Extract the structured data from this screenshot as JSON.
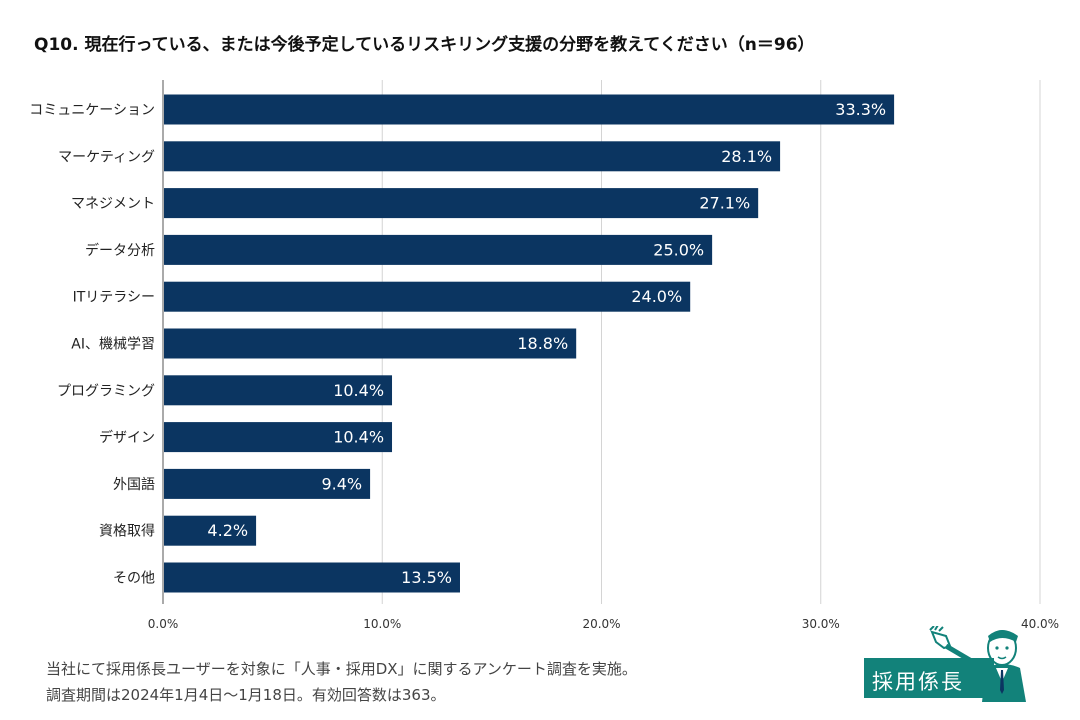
{
  "chart_data": {
    "type": "bar",
    "orientation": "horizontal",
    "title": "Q10. 現在行っている、または今後予定しているリスキリング支援の分野を教えてください（n＝96）",
    "categories": [
      "コミュニケーション",
      "マーケティング",
      "マネジメント",
      "データ分析",
      "ITリテラシー",
      "AI、機械学習",
      "プログラミング",
      "デザイン",
      "外国語",
      "資格取得",
      "その他"
    ],
    "values": [
      33.3,
      28.1,
      27.1,
      25.0,
      24.0,
      18.8,
      10.4,
      10.4,
      9.4,
      4.2,
      13.5
    ],
    "value_labels": [
      "33.3%",
      "28.1%",
      "27.1%",
      "25.0%",
      "24.0%",
      "18.8%",
      "10.4%",
      "10.4%",
      "9.4%",
      "4.2%",
      "13.5%"
    ],
    "xlim": [
      0,
      40
    ],
    "x_ticks": [
      "0.0%",
      "10.0%",
      "20.0%",
      "30.0%",
      "40.0%"
    ],
    "x_tick_values": [
      0,
      10,
      20,
      30,
      40
    ],
    "xlabel": "",
    "ylabel": "",
    "grid": true,
    "bar_color": "#0b3561",
    "grid_color": "#d4d4d4"
  },
  "footnotes": {
    "line1": "当社にて採用係長ユーザーを対象に「人事・採用DX」に関するアンケート調査を実施。",
    "line2": "調査期間は2024年1月4日〜1月18日。有効回答数は363。"
  },
  "logo": {
    "text": "採用係長",
    "color": "#12827a"
  }
}
